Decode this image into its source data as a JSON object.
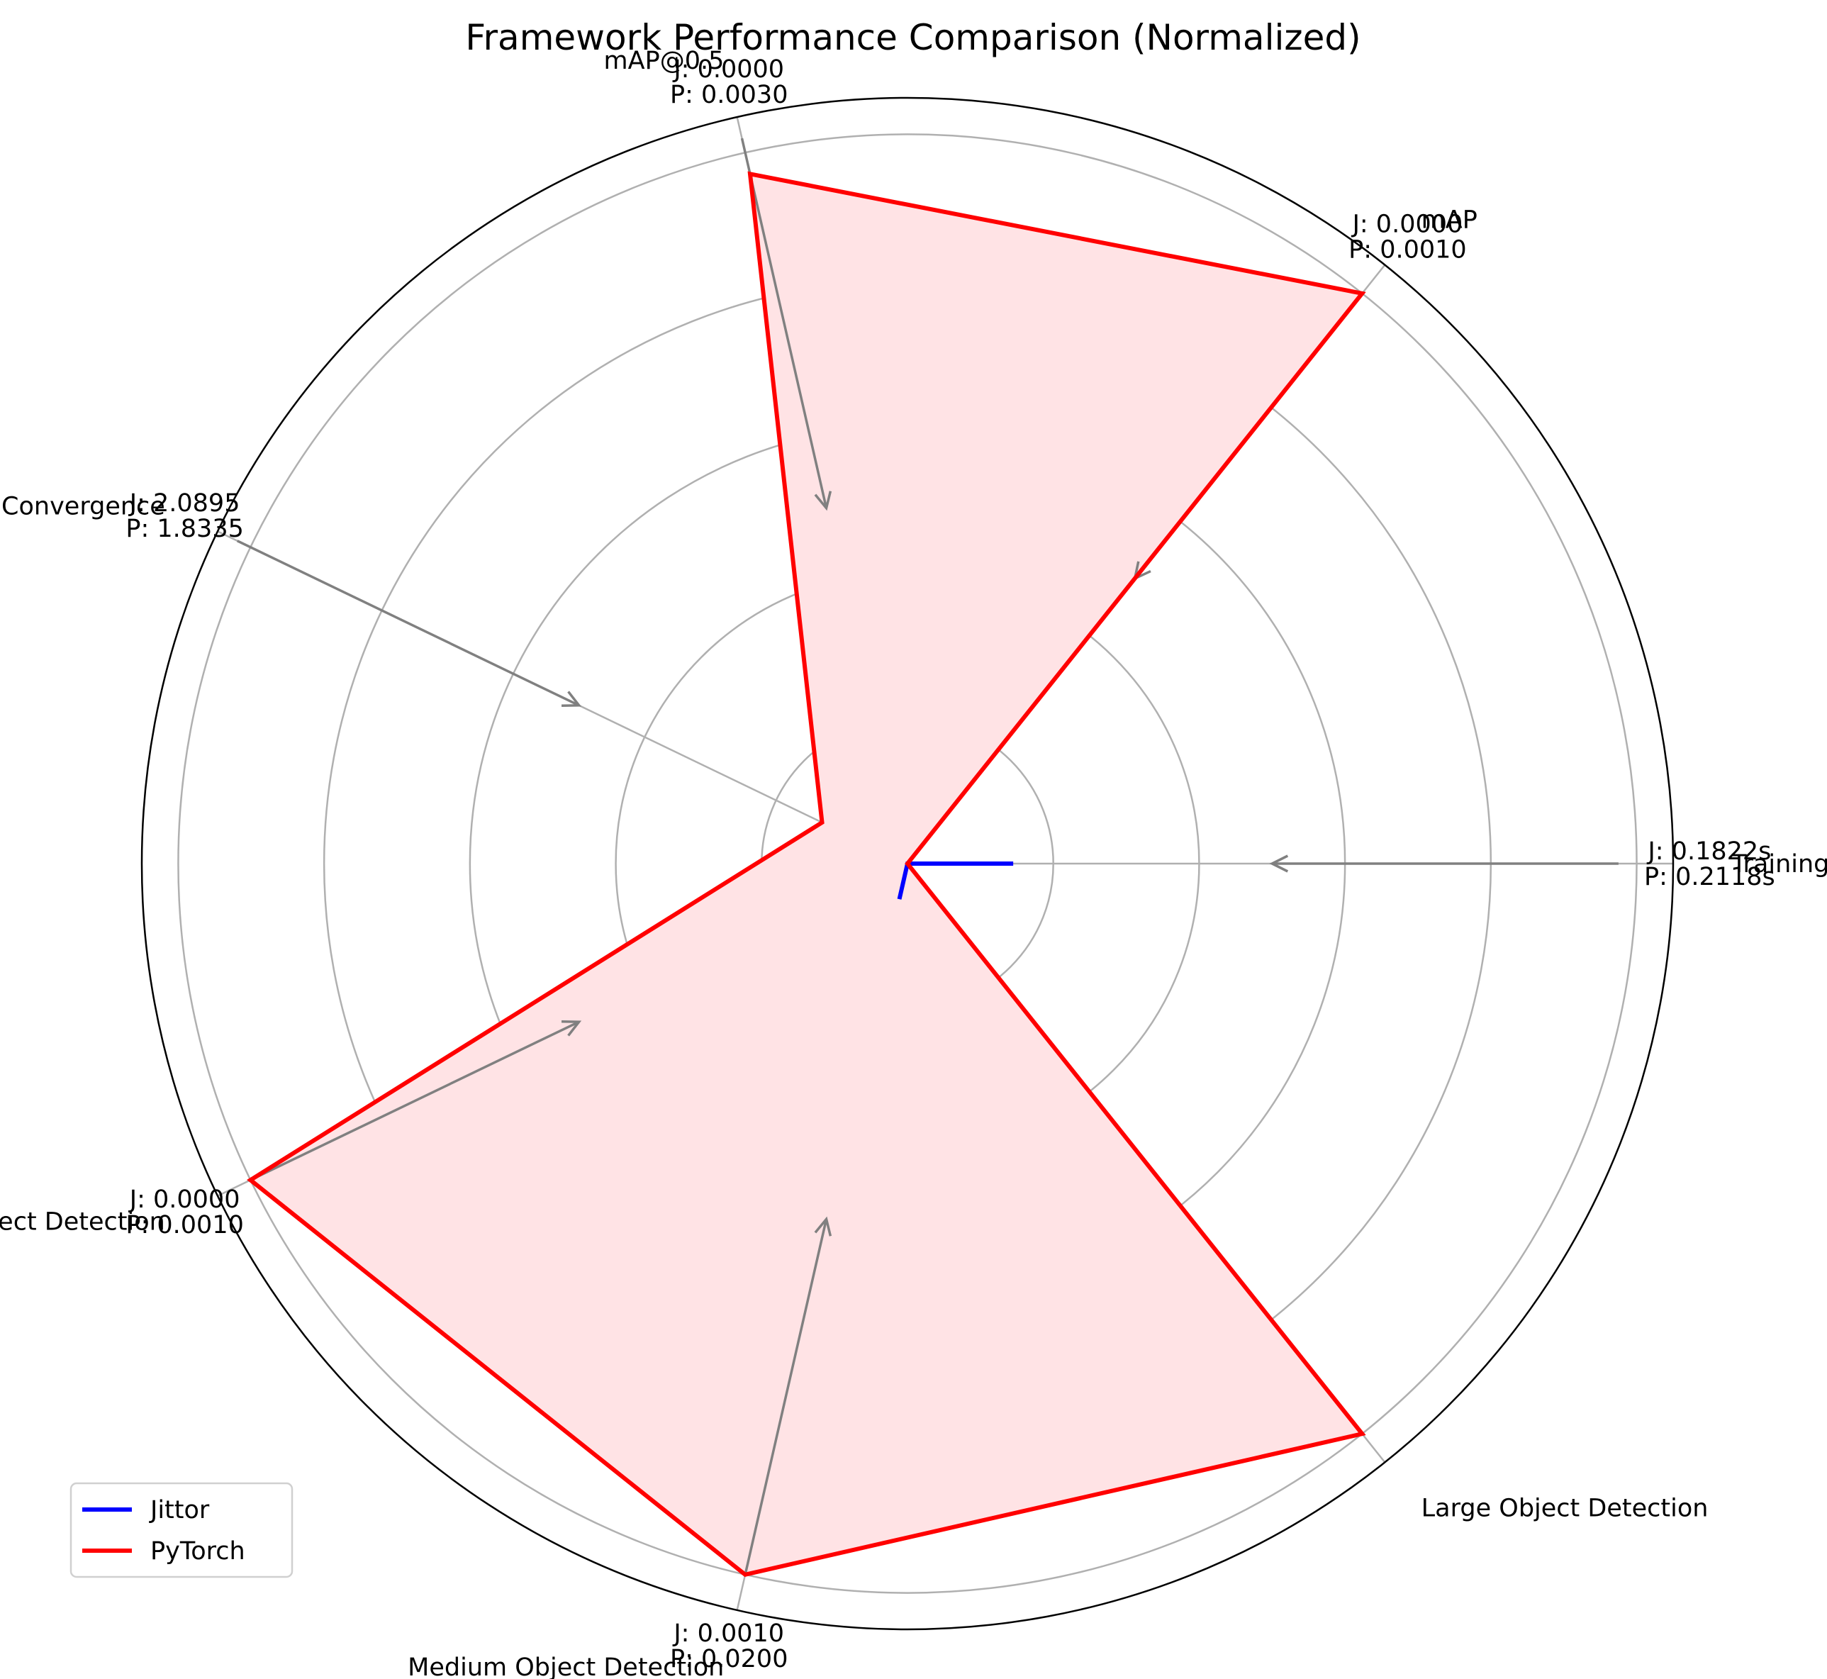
{
  "chart_data": {
    "type": "radar",
    "title": "Framework Performance Comparison (Normalized)",
    "categories": [
      "Training Speed",
      "mAP",
      "mAP@0.5",
      "Loss Convergence",
      "Small Object Detection",
      "Medium Object Detection",
      "Large Object Detection"
    ],
    "rmax": 1.05,
    "grid_rings": [
      0.2,
      0.4,
      0.6,
      0.8,
      1.0
    ],
    "grid": true,
    "legend_position": "lower-left",
    "series": [
      {
        "name": "Jittor",
        "color": "#0000ff",
        "values": [
          0.145,
          0.0,
          0.0,
          0.0,
          0.0,
          0.05,
          0.0
        ],
        "fill": false
      },
      {
        "name": "PyTorch",
        "color": "#ff0000",
        "values": [
          0.0,
          1.0,
          0.97,
          0.13,
          1.0,
          1.0,
          1.0
        ],
        "fill": true,
        "fill_color": "#ffe3e5"
      }
    ],
    "value_labels": [
      {
        "category": "Training Speed",
        "jittor": "J: 0.1822s",
        "pytorch": "P: 0.2118s"
      },
      {
        "category": "mAP",
        "jittor": "J: 0.0000",
        "pytorch": "P: 0.0010"
      },
      {
        "category": "mAP@0.5",
        "jittor": "J: 0.0000",
        "pytorch": "P: 0.0030"
      },
      {
        "category": "Loss Convergence",
        "jittor": "J: 2.0895",
        "pytorch": "P: 1.8335"
      },
      {
        "category": "Small Object Detection",
        "jittor": "J: 0.0000",
        "pytorch": "P: 0.0010"
      },
      {
        "category": "Medium Object Detection",
        "jittor": "J: 0.0010",
        "pytorch": "P: 0.0200"
      },
      {
        "category": "Large Object Detection",
        "jittor": "",
        "pytorch": ""
      }
    ],
    "annotation_arrows": [
      {
        "category": "Training Speed",
        "from": 0.975,
        "to": 0.5
      },
      {
        "category": "mAP",
        "from": 1.0,
        "to": 0.5
      },
      {
        "category": "mAP@0.5",
        "from": 1.02,
        "to": 0.5
      },
      {
        "category": "Loss Convergence",
        "from": 1.02,
        "to": 0.5
      },
      {
        "category": "Small Object Detection",
        "from": 1.0,
        "to": 0.5
      },
      {
        "category": "Medium Object Detection",
        "from": 1.0,
        "to": 0.5
      }
    ],
    "colors": {
      "grid": "#b0b0b0",
      "spine": "#000000",
      "arrow": "#808080"
    }
  }
}
